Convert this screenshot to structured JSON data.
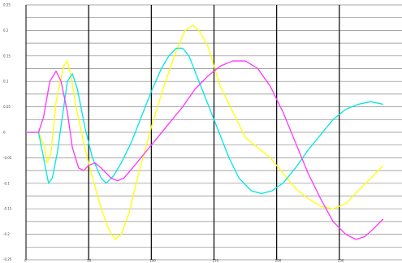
{
  "chart_data": {
    "type": "line",
    "title": "",
    "xlabel": "",
    "ylabel": "",
    "xlim": [
      0,
      300
    ],
    "ylim": [
      -0.25,
      0.25
    ],
    "x_ticks": [
      0,
      50,
      100,
      150,
      200,
      250
    ],
    "x_tick_labels": [
      "0",
      "50",
      "100",
      "150",
      "200",
      "250"
    ],
    "y_ticks": [
      -0.25,
      -0.2,
      -0.15,
      -0.1,
      -0.05,
      0,
      0.05,
      0.1,
      0.15,
      0.2,
      0.25
    ],
    "y_tick_labels": [
      "-0.25",
      "-0.2",
      "-0.15",
      "-0.1",
      "-0.05",
      "0",
      "0.05",
      "0.1",
      "0.15",
      "0.2",
      "0.25"
    ],
    "grid": true,
    "legend": "none",
    "series": [
      {
        "color": "#ffff00",
        "points": [
          [
            0,
            0
          ],
          [
            10,
            0
          ],
          [
            15,
            -0.03
          ],
          [
            17,
            -0.06
          ],
          [
            20,
            -0.04
          ],
          [
            24,
            0.06
          ],
          [
            30,
            0.13
          ],
          [
            33,
            0.14
          ],
          [
            36,
            0.11
          ],
          [
            40,
            0.05
          ],
          [
            46,
            -0.02
          ],
          [
            52,
            -0.08
          ],
          [
            60,
            -0.15
          ],
          [
            66,
            -0.19
          ],
          [
            71,
            -0.21
          ],
          [
            76,
            -0.2
          ],
          [
            82,
            -0.16
          ],
          [
            90,
            -0.08
          ],
          [
            100,
            0.01
          ],
          [
            110,
            0.09
          ],
          [
            120,
            0.16
          ],
          [
            127,
            0.2
          ],
          [
            133,
            0.21
          ],
          [
            138,
            0.2
          ],
          [
            145,
            0.17
          ],
          [
            155,
            0.09
          ],
          [
            165,
            0.04
          ],
          [
            175,
            -0.01
          ],
          [
            185,
            -0.03
          ],
          [
            195,
            -0.05
          ],
          [
            205,
            -0.08
          ],
          [
            215,
            -0.11
          ],
          [
            225,
            -0.13
          ],
          [
            235,
            -0.145
          ],
          [
            245,
            -0.15
          ],
          [
            255,
            -0.14
          ],
          [
            265,
            -0.115
          ],
          [
            275,
            -0.09
          ],
          [
            285,
            -0.065
          ]
        ]
      },
      {
        "color": "#00e5e5",
        "points": [
          [
            0,
            0
          ],
          [
            10,
            0
          ],
          [
            14,
            -0.05
          ],
          [
            18,
            -0.1
          ],
          [
            21,
            -0.09
          ],
          [
            25,
            -0.04
          ],
          [
            29,
            0.03
          ],
          [
            33,
            0.1
          ],
          [
            37,
            0.115
          ],
          [
            41,
            0.085
          ],
          [
            47,
            0.01
          ],
          [
            53,
            -0.05
          ],
          [
            60,
            -0.09
          ],
          [
            64,
            -0.1
          ],
          [
            70,
            -0.085
          ],
          [
            76,
            -0.06
          ],
          [
            84,
            -0.02
          ],
          [
            92,
            0.03
          ],
          [
            100,
            0.08
          ],
          [
            108,
            0.125
          ],
          [
            114,
            0.15
          ],
          [
            120,
            0.165
          ],
          [
            125,
            0.165
          ],
          [
            130,
            0.15
          ],
          [
            138,
            0.1
          ],
          [
            146,
            0.05
          ],
          [
            154,
            0.0
          ],
          [
            162,
            -0.05
          ],
          [
            170,
            -0.09
          ],
          [
            180,
            -0.115
          ],
          [
            188,
            -0.12
          ],
          [
            196,
            -0.115
          ],
          [
            205,
            -0.1
          ],
          [
            215,
            -0.07
          ],
          [
            225,
            -0.035
          ],
          [
            235,
            -0.005
          ],
          [
            245,
            0.025
          ],
          [
            255,
            0.045
          ],
          [
            265,
            0.055
          ],
          [
            275,
            0.06
          ],
          [
            285,
            0.055
          ]
        ]
      },
      {
        "color": "#ff33ff",
        "points": [
          [
            0,
            0
          ],
          [
            10,
            0
          ],
          [
            14,
            0.03
          ],
          [
            19,
            0.1
          ],
          [
            24,
            0.12
          ],
          [
            28,
            0.1
          ],
          [
            33,
            0.04
          ],
          [
            37,
            -0.03
          ],
          [
            42,
            -0.07
          ],
          [
            46,
            -0.075
          ],
          [
            50,
            -0.065
          ],
          [
            55,
            -0.06
          ],
          [
            60,
            -0.07
          ],
          [
            64,
            -0.08
          ],
          [
            68,
            -0.09
          ],
          [
            73,
            -0.095
          ],
          [
            78,
            -0.09
          ],
          [
            85,
            -0.07
          ],
          [
            95,
            -0.04
          ],
          [
            105,
            -0.01
          ],
          [
            115,
            0.02
          ],
          [
            125,
            0.05
          ],
          [
            135,
            0.085
          ],
          [
            145,
            0.11
          ],
          [
            155,
            0.13
          ],
          [
            165,
            0.14
          ],
          [
            175,
            0.14
          ],
          [
            185,
            0.125
          ],
          [
            195,
            0.09
          ],
          [
            205,
            0.04
          ],
          [
            215,
            -0.02
          ],
          [
            225,
            -0.08
          ],
          [
            235,
            -0.13
          ],
          [
            245,
            -0.175
          ],
          [
            255,
            -0.2
          ],
          [
            263,
            -0.21
          ],
          [
            270,
            -0.205
          ],
          [
            277,
            -0.19
          ],
          [
            285,
            -0.17
          ]
        ]
      }
    ]
  }
}
